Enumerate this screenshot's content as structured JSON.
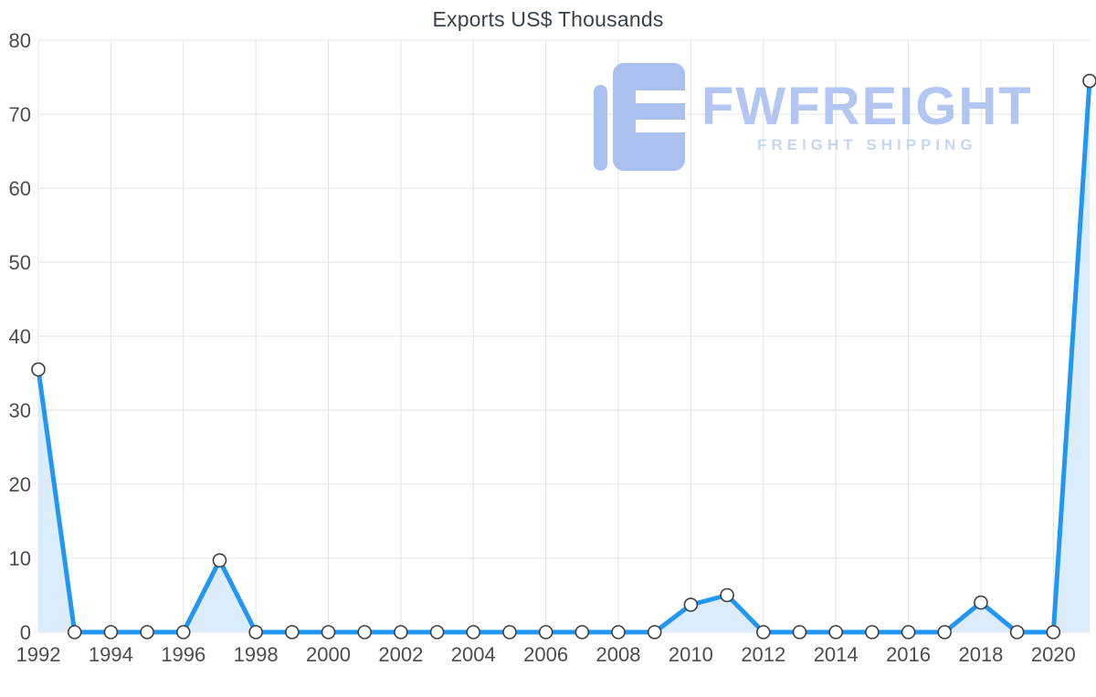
{
  "watermark": {
    "brand": "FWFREIGHT",
    "tagline": "FREIGHT SHIPPING"
  },
  "colors": {
    "line": "#2196f3",
    "area": "#dcecfb",
    "grid": "#e3e3e3",
    "axis_text": "#4d4d4d",
    "title_text": "#37424a",
    "marker_fill": "#ffffff",
    "marker_stroke": "#3f3f3f",
    "watermark_blue": "#aac1ef"
  },
  "chart_data": {
    "type": "line",
    "title": "Exports US$ Thousands",
    "x": [
      1992,
      1993,
      1994,
      1995,
      1996,
      1997,
      1998,
      1999,
      2000,
      2001,
      2002,
      2003,
      2004,
      2005,
      2006,
      2007,
      2008,
      2009,
      2010,
      2011,
      2012,
      2013,
      2014,
      2015,
      2016,
      2017,
      2018,
      2019,
      2020,
      2021
    ],
    "values": [
      35.5,
      0,
      0,
      0,
      0,
      9.7,
      0,
      0,
      0,
      0,
      0,
      0,
      0,
      0,
      0,
      0,
      0,
      0,
      3.7,
      5,
      0,
      0,
      0,
      0,
      0,
      0,
      4,
      0,
      0,
      74.5
    ],
    "series_name": "Exports US$ Thousands",
    "xlabel": "",
    "ylabel": "",
    "ylim": [
      0,
      80
    ],
    "yticks": [
      0,
      10,
      20,
      30,
      40,
      50,
      60,
      70,
      80
    ],
    "xtick_labels": [
      "1992",
      "1994",
      "1996",
      "1998",
      "2000",
      "2002",
      "2004",
      "2006",
      "2008",
      "2010",
      "2012",
      "2014",
      "2016",
      "2018",
      "2020"
    ],
    "grid": true,
    "marker": "circle",
    "legend": "none"
  }
}
